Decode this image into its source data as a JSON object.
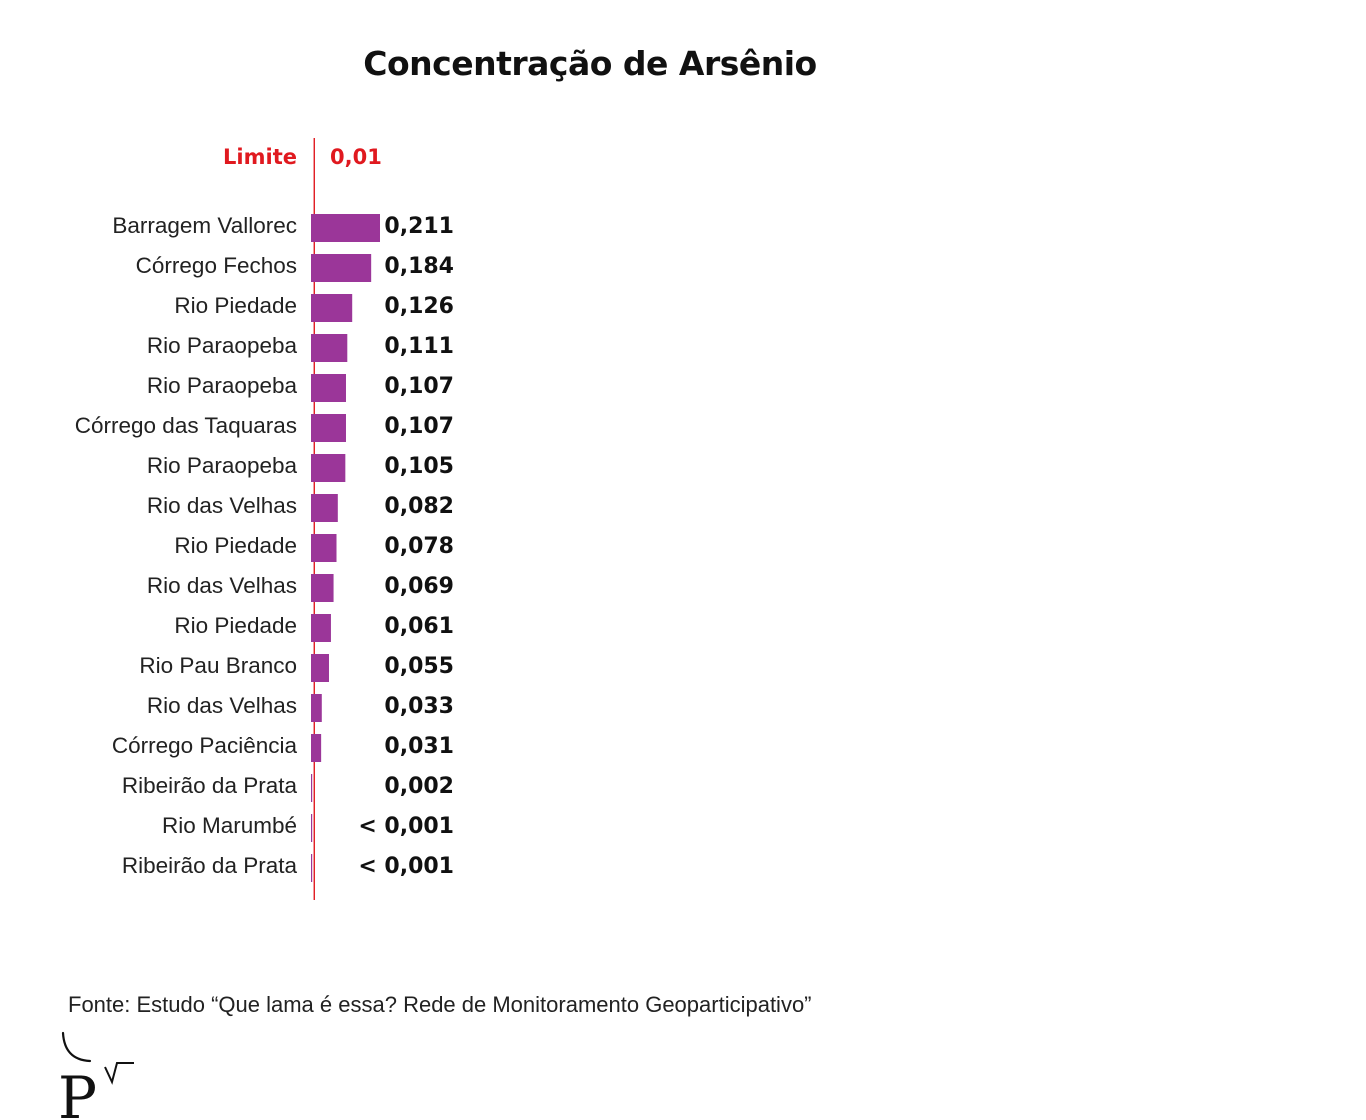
{
  "chart_data": {
    "type": "bar",
    "orientation": "horizontal",
    "title": "Concentração de Arsênio",
    "categories": [
      "Barragem Vallorec",
      "Córrego Fechos",
      "Rio Piedade",
      "Rio Paraopeba",
      "Rio Paraopeba",
      "Córrego das Taquaras",
      "Rio Paraopeba",
      "Rio das Velhas",
      "Rio Piedade",
      "Rio das Velhas",
      "Rio Piedade",
      "Rio Pau Branco",
      "Rio das Velhas",
      "Córrego Paciência",
      "Ribeirão da Prata",
      "Rio Marumbé",
      "Ribeirão da Prata"
    ],
    "values": [
      0.211,
      0.184,
      0.126,
      0.111,
      0.107,
      0.107,
      0.105,
      0.082,
      0.078,
      0.069,
      0.061,
      0.055,
      0.033,
      0.031,
      0.002,
      0.001,
      0.001
    ],
    "value_labels": [
      "0,211",
      "0,184",
      "0,126",
      "0,111",
      "0,107",
      "0,107",
      "0,105",
      "0,082",
      "0,078",
      "0,069",
      "0,061",
      "0,055",
      "0,033",
      "0,031",
      "0,002",
      "< 0,001",
      "< 0,001"
    ],
    "limit": {
      "label": "Limite",
      "value": 0.01,
      "value_label": "0,01",
      "color": "#e0191f"
    },
    "bar_color": "#9b3699",
    "grid": false,
    "legend": "none"
  },
  "source": "Fonte: Estudo “Que lama é essa? Rede de Monitoramento Geoparticipativo”",
  "logo": {
    "text": "P",
    "icon": "pv-logo-icon"
  }
}
